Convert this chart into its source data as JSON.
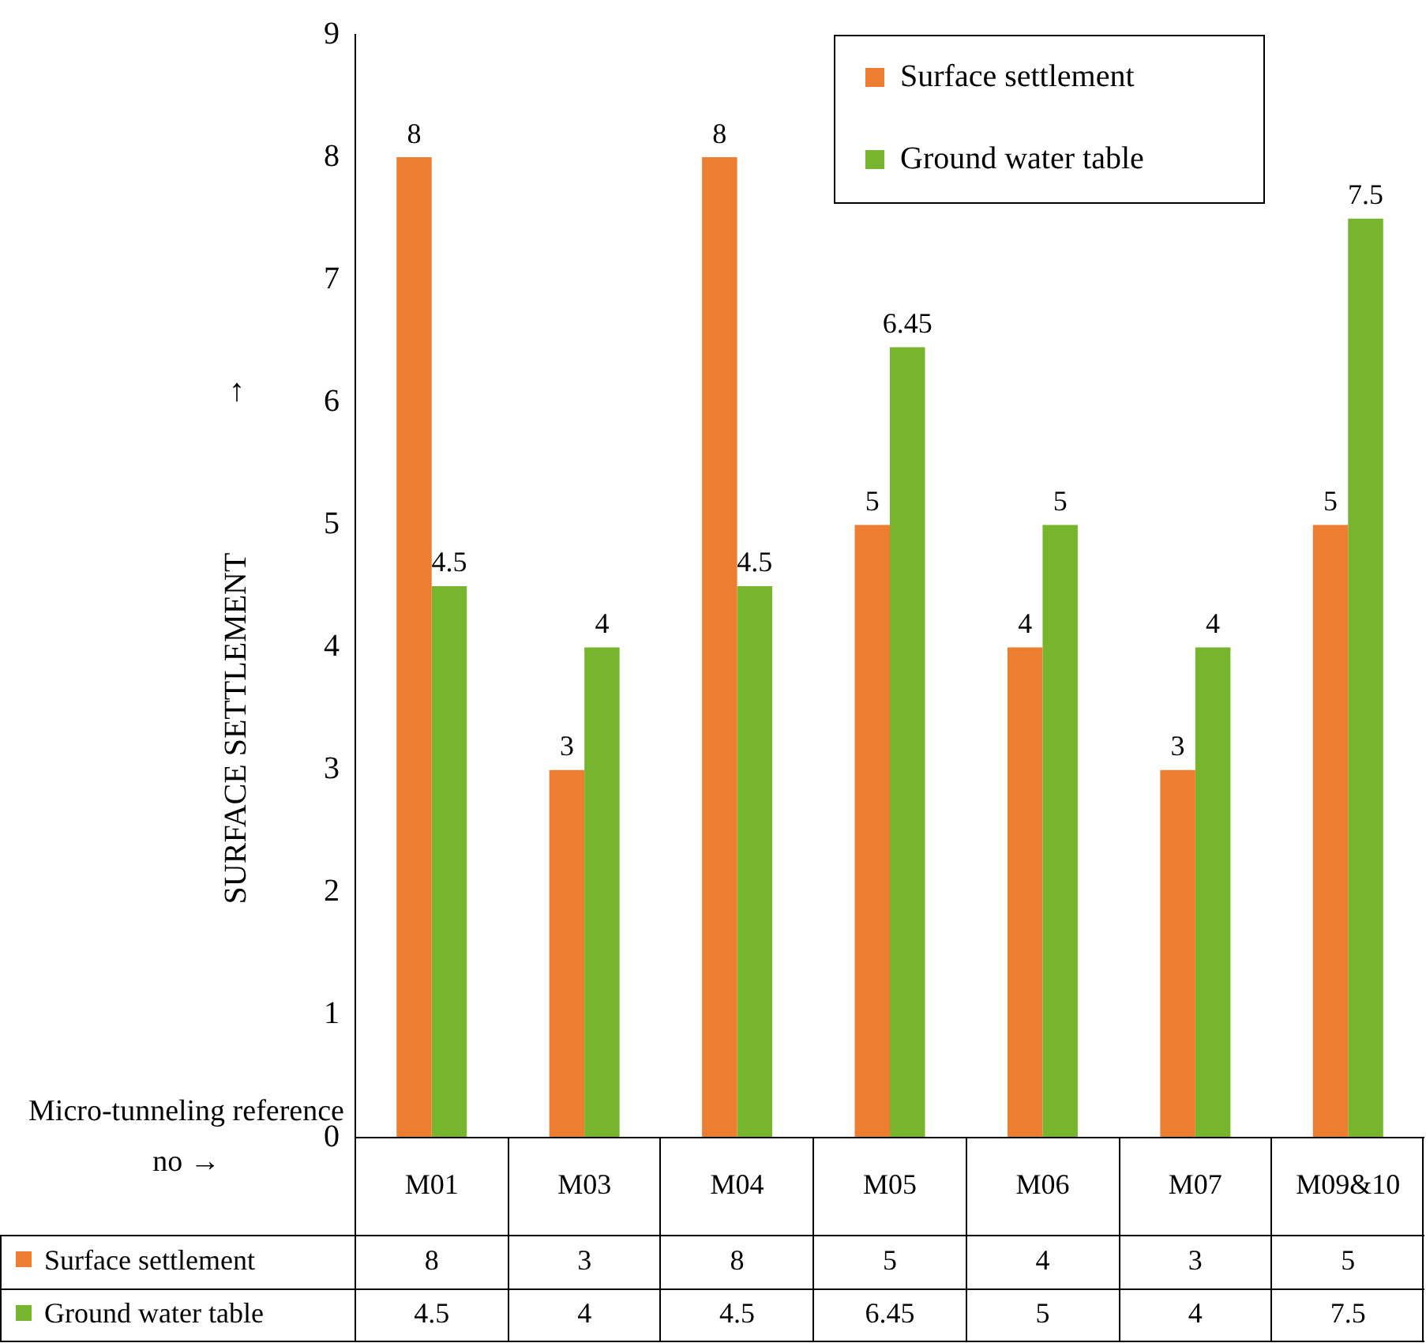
{
  "chart_data": {
    "type": "bar",
    "ylabel": "SURFACE SETTLEMENT",
    "categories": [
      "M01",
      "M03",
      "M04",
      "M05",
      "M06",
      "M07",
      "M09&10"
    ],
    "series": [
      {
        "name": "Surface settlement",
        "color": "#ed7d31",
        "values": [
          8,
          3,
          8,
          5,
          4,
          3,
          5
        ]
      },
      {
        "name": "Ground water table",
        "color": "#77b52e",
        "values": [
          4.5,
          4,
          4.5,
          6.45,
          5,
          4,
          7.5
        ]
      }
    ],
    "ylim": [
      0,
      9
    ],
    "yticks": [
      0,
      1,
      2,
      3,
      4,
      5,
      6,
      7,
      8,
      9
    ],
    "grid": false,
    "legend": "top right",
    "data_labels": true,
    "annotations": [
      "↑",
      "Micro-tunneling reference no →",
      {
        "text": "8",
        "x": "M01",
        "y": 8
      },
      {
        "text": "4.5",
        "x": "M01",
        "y": 4.5
      },
      {
        "text": "3",
        "x": "M03",
        "y": 3
      },
      {
        "text": "4",
        "x": "M03",
        "y": 4
      },
      {
        "text": "8",
        "x": "M04",
        "y": 8
      },
      {
        "text": "4.5",
        "x": "M04",
        "y": 4.5
      },
      {
        "text": "5",
        "x": "M05",
        "y": 5
      },
      {
        "text": "6.45",
        "x": "M05",
        "y": 6.45
      },
      {
        "text": "4",
        "x": "M06",
        "y": 4
      },
      {
        "text": "5",
        "x": "M06",
        "y": 5
      },
      {
        "text": "3",
        "x": "M07",
        "y": 3
      },
      {
        "text": "4",
        "x": "M07",
        "y": 4
      },
      {
        "text": "5",
        "x": "M09&10",
        "y": 5
      },
      {
        "text": "7.5",
        "x": "M09&10",
        "y": 7.5
      }
    ]
  }
}
